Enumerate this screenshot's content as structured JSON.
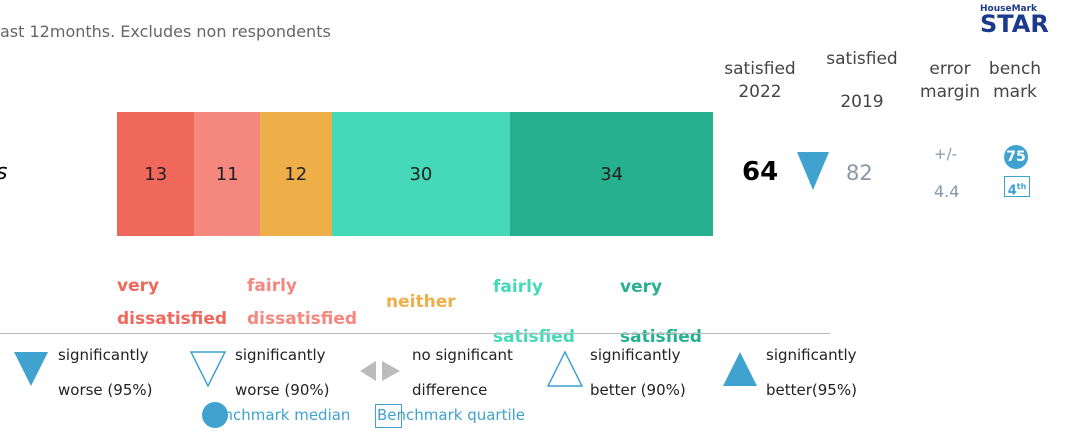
{
  "subtitle": "ast 12months. Excludes non respondents",
  "logo": {
    "brand": "HouseMark",
    "name": "STAR"
  },
  "headers": {
    "satisfied_2022": "satisfied 2022",
    "satisfied_2019": "satisfied 2019",
    "error_margin": "error margin",
    "benchmark": "bench mark"
  },
  "row": {
    "label": "s",
    "satisfied_2022": 64,
    "satisfied_2019": 82,
    "error_sign": "+/-",
    "error_margin": 4.4,
    "benchmark_median": 75,
    "benchmark_quartile": 4,
    "quartile_suffix": "th"
  },
  "chart_data": {
    "type": "bar",
    "stacked": true,
    "orientation": "horizontal",
    "xlim": [
      0,
      100
    ],
    "series": [
      {
        "name": "very dissatisfied",
        "color": "#f0675c",
        "values": [
          13
        ]
      },
      {
        "name": "fairly dissatisfied",
        "color": "#f4877e",
        "values": [
          11
        ]
      },
      {
        "name": "neither",
        "color": "#eeaf48",
        "values": [
          12
        ]
      },
      {
        "name": "fairly satisfied",
        "color": "#45d9b9",
        "values": [
          30
        ]
      },
      {
        "name": "very satisfied",
        "color": "#26b08f",
        "values": [
          34
        ]
      }
    ]
  },
  "key": [
    {
      "text": "significantly worse (95%)"
    },
    {
      "text": "significantly worse (90%)"
    },
    {
      "text": "no significant difference"
    },
    {
      "text": "significantly better (90%)"
    },
    {
      "text": "significantly better(95%)"
    }
  ],
  "bench_key": {
    "median": "Benchmark median",
    "quartile": "Benchmark quartile"
  }
}
